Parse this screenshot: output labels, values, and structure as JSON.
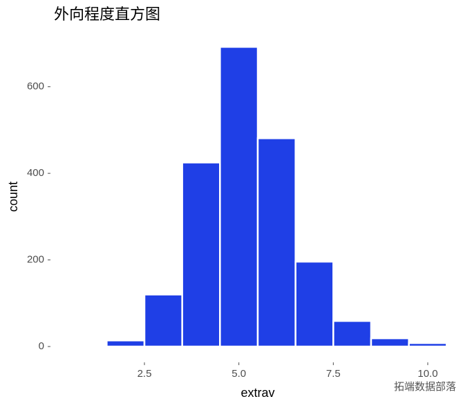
{
  "chart_data": {
    "type": "histogram",
    "title": "外向程度直方图",
    "x_label": "extrav",
    "y_label": "count",
    "bins": [
      0.5,
      1.5,
      2.5,
      3.5,
      4.5,
      5.5,
      6.5,
      7.5,
      8.5,
      9.5,
      10.5
    ],
    "values": [
      3,
      14,
      120,
      425,
      692,
      481,
      196,
      59,
      19,
      8
    ],
    "color": "#1f3fe6",
    "xlim": [
      0.03,
      10.97
    ],
    "xticks": [
      2.5,
      {
        "value": 5,
        "label": "5.0"
      },
      7.5,
      {
        "value": 10,
        "label": "10.0"
      }
    ],
    "ylim": [
      -35,
      727
    ],
    "yticks": [
      0,
      200,
      400,
      600
    ],
    "grid": false,
    "watermark": "拓端数据部落"
  }
}
